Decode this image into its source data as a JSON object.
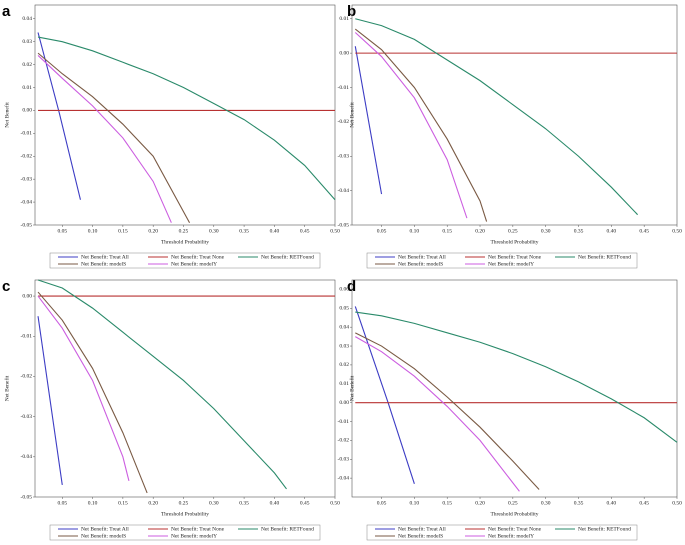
{
  "chart_data": [
    {
      "type": "line",
      "label": "a",
      "x_label": "Threshold Probability",
      "y_label": "Net Benefit",
      "xlim": [
        0.005,
        0.5
      ],
      "xticks": [
        0.05,
        {
          "value": 0.1,
          "label": "0.10"
        },
        0.15,
        {
          "value": 0.2,
          "label": "0.20"
        },
        0.25,
        {
          "value": 0.3,
          "label": "0.30"
        },
        0.35,
        {
          "value": 0.4,
          "label": "0.40"
        },
        0.45,
        {
          "value": 0.5,
          "label": "0.50"
        }
      ],
      "ylim": [
        -0.05,
        0.046
      ],
      "yticks": [
        0.04,
        0.03,
        0.02,
        0.01,
        {
          "value": 0,
          "label": "0.00"
        },
        -0.01,
        -0.02,
        -0.03,
        -0.04,
        -0.05
      ],
      "series": [
        {
          "name": "Net Benefit: Treat All",
          "color": "#3c3cc4",
          "x": [
            0.01,
            0.045,
            0.08
          ],
          "values": [
            0.034,
            -0.001,
            -0.039
          ]
        },
        {
          "name": "Net Benefit: Treat None",
          "color": "#b83232",
          "x": [
            0.01,
            0.5
          ],
          "values": [
            0,
            0
          ]
        },
        {
          "name": "Net Benefit: RETFound",
          "color": "#2a8a6a",
          "x": [
            0.01,
            0.05,
            0.1,
            0.15,
            0.2,
            0.25,
            0.3,
            0.35,
            0.4,
            0.45,
            0.5
          ],
          "values": [
            0.032,
            0.03,
            0.026,
            0.021,
            0.016,
            0.01,
            0.003,
            -0.004,
            -0.013,
            -0.024,
            -0.039
          ]
        },
        {
          "name": "Net Benefit: modelS",
          "color": "#7a5a44",
          "x": [
            0.01,
            0.05,
            0.1,
            0.15,
            0.2,
            0.26
          ],
          "values": [
            0.025,
            0.016,
            0.006,
            -0.006,
            -0.02,
            -0.049
          ]
        },
        {
          "name": "Net Benefit: modelY",
          "color": "#cc5ee0",
          "x": [
            0.01,
            0.05,
            0.1,
            0.15,
            0.2,
            0.23
          ],
          "values": [
            0.024,
            0.014,
            0.002,
            -0.012,
            -0.031,
            -0.049
          ]
        }
      ]
    },
    {
      "type": "line",
      "label": "b",
      "x_label": "Threshold Probability",
      "y_label": "Net Benefit",
      "xlim": [
        0.005,
        0.5
      ],
      "xticks": [
        0.05,
        {
          "value": 0.1,
          "label": "0.10"
        },
        0.15,
        {
          "value": 0.2,
          "label": "0.20"
        },
        0.25,
        {
          "value": 0.3,
          "label": "0.30"
        },
        0.35,
        {
          "value": 0.4,
          "label": "0.40"
        },
        0.45,
        {
          "value": 0.5,
          "label": "0.50"
        }
      ],
      "ylim": [
        -0.05,
        0.014
      ],
      "yticks": [
        0.01,
        {
          "value": 0,
          "label": "0.00"
        },
        -0.01,
        -0.02,
        -0.03,
        -0.04,
        -0.05
      ],
      "series": [
        {
          "name": "Net Benefit: Treat All",
          "color": "#3c3cc4",
          "x": [
            0.01,
            0.05
          ],
          "values": [
            0.002,
            -0.041
          ]
        },
        {
          "name": "Net Benefit: Treat None",
          "color": "#b83232",
          "x": [
            0.01,
            0.5
          ],
          "values": [
            0,
            0
          ]
        },
        {
          "name": "Net Benefit: RETFound",
          "color": "#2a8a6a",
          "x": [
            0.01,
            0.05,
            0.1,
            0.15,
            0.2,
            0.25,
            0.3,
            0.35,
            0.4,
            0.44
          ],
          "values": [
            0.01,
            0.008,
            0.004,
            -0.002,
            -0.008,
            -0.015,
            -0.022,
            -0.03,
            -0.039,
            -0.047
          ]
        },
        {
          "name": "Net Benefit: modelS",
          "color": "#7a5a44",
          "x": [
            0.01,
            0.05,
            0.1,
            0.15,
            0.2,
            0.21
          ],
          "values": [
            0.007,
            0.001,
            -0.01,
            -0.025,
            -0.043,
            -0.049
          ]
        },
        {
          "name": "Net Benefit: modelY",
          "color": "#cc5ee0",
          "x": [
            0.01,
            0.05,
            0.1,
            0.15,
            0.18
          ],
          "values": [
            0.006,
            -0.001,
            -0.013,
            -0.031,
            -0.048
          ]
        }
      ]
    },
    {
      "type": "line",
      "label": "c",
      "x_label": "Threshold Probability",
      "y_label": "Net Benefit",
      "xlim": [
        0.005,
        0.5
      ],
      "xticks": [
        0.05,
        {
          "value": 0.1,
          "label": "0.10"
        },
        0.15,
        {
          "value": 0.2,
          "label": "0.20"
        },
        0.25,
        {
          "value": 0.3,
          "label": "0.30"
        },
        0.35,
        {
          "value": 0.4,
          "label": "0.40"
        },
        0.45,
        {
          "value": 0.5,
          "label": "0.50"
        }
      ],
      "ylim": [
        -0.05,
        0.004
      ],
      "yticks": [
        {
          "value": 0,
          "label": "0.00"
        },
        -0.01,
        -0.02,
        -0.03,
        -0.04,
        -0.05
      ],
      "series": [
        {
          "name": "Net Benefit: Treat All",
          "color": "#3c3cc4",
          "x": [
            0.01,
            0.05
          ],
          "values": [
            -0.005,
            -0.047
          ]
        },
        {
          "name": "Net Benefit: Treat None",
          "color": "#b83232",
          "x": [
            0.01,
            0.5
          ],
          "values": [
            0,
            0
          ]
        },
        {
          "name": "Net Benefit: RETFound",
          "color": "#2a8a6a",
          "x": [
            0.01,
            0.05,
            0.1,
            0.15,
            0.2,
            0.25,
            0.3,
            0.35,
            0.4,
            0.42
          ],
          "values": [
            0.004,
            0.002,
            -0.003,
            -0.009,
            -0.015,
            -0.021,
            -0.028,
            -0.036,
            -0.044,
            -0.048
          ]
        },
        {
          "name": "Net Benefit: modelS",
          "color": "#7a5a44",
          "x": [
            0.01,
            0.05,
            0.1,
            0.15,
            0.19
          ],
          "values": [
            0.001,
            -0.006,
            -0.018,
            -0.034,
            -0.049
          ]
        },
        {
          "name": "Net Benefit: modelY",
          "color": "#cc5ee0",
          "x": [
            0.01,
            0.05,
            0.1,
            0.15,
            0.16
          ],
          "values": [
            0,
            -0.008,
            -0.021,
            -0.04,
            -0.046
          ]
        }
      ]
    },
    {
      "type": "line",
      "label": "d",
      "x_label": "Threshold Probability",
      "y_label": "Net Benefit",
      "xlim": [
        0.005,
        0.5
      ],
      "xticks": [
        0.05,
        {
          "value": 0.1,
          "label": "0.10"
        },
        0.15,
        {
          "value": 0.2,
          "label": "0.20"
        },
        0.25,
        {
          "value": 0.3,
          "label": "0.30"
        },
        0.35,
        {
          "value": 0.4,
          "label": "0.40"
        },
        0.45,
        {
          "value": 0.5,
          "label": "0.50"
        }
      ],
      "ylim": [
        -0.05,
        0.065
      ],
      "yticks": [
        0.06,
        0.05,
        0.04,
        0.03,
        0.02,
        0.01,
        {
          "value": 0,
          "label": "0.00"
        },
        -0.01,
        -0.02,
        -0.03,
        -0.04
      ],
      "series": [
        {
          "name": "Net Benefit: Treat All",
          "color": "#3c3cc4",
          "x": [
            0.01,
            0.06,
            0.1
          ],
          "values": [
            0.051,
            0,
            -0.043
          ]
        },
        {
          "name": "Net Benefit: Treat None",
          "color": "#b83232",
          "x": [
            0.01,
            0.5
          ],
          "values": [
            0,
            0
          ]
        },
        {
          "name": "Net Benefit: RETFound",
          "color": "#2a8a6a",
          "x": [
            0.01,
            0.05,
            0.1,
            0.15,
            0.2,
            0.25,
            0.3,
            0.35,
            0.4,
            0.45,
            0.5
          ],
          "values": [
            0.048,
            0.046,
            0.042,
            0.037,
            0.032,
            0.026,
            0.019,
            0.011,
            0.002,
            -0.008,
            -0.021
          ]
        },
        {
          "name": "Net Benefit: modelS",
          "color": "#7a5a44",
          "x": [
            0.01,
            0.05,
            0.1,
            0.15,
            0.2,
            0.25,
            0.29
          ],
          "values": [
            0.037,
            0.03,
            0.018,
            0.003,
            -0.013,
            -0.031,
            -0.046
          ]
        },
        {
          "name": "Net Benefit: modelY",
          "color": "#cc5ee0",
          "x": [
            0.01,
            0.05,
            0.1,
            0.15,
            0.2,
            0.26
          ],
          "values": [
            0.035,
            0.027,
            0.014,
            -0.002,
            -0.02,
            -0.047
          ]
        }
      ]
    }
  ]
}
